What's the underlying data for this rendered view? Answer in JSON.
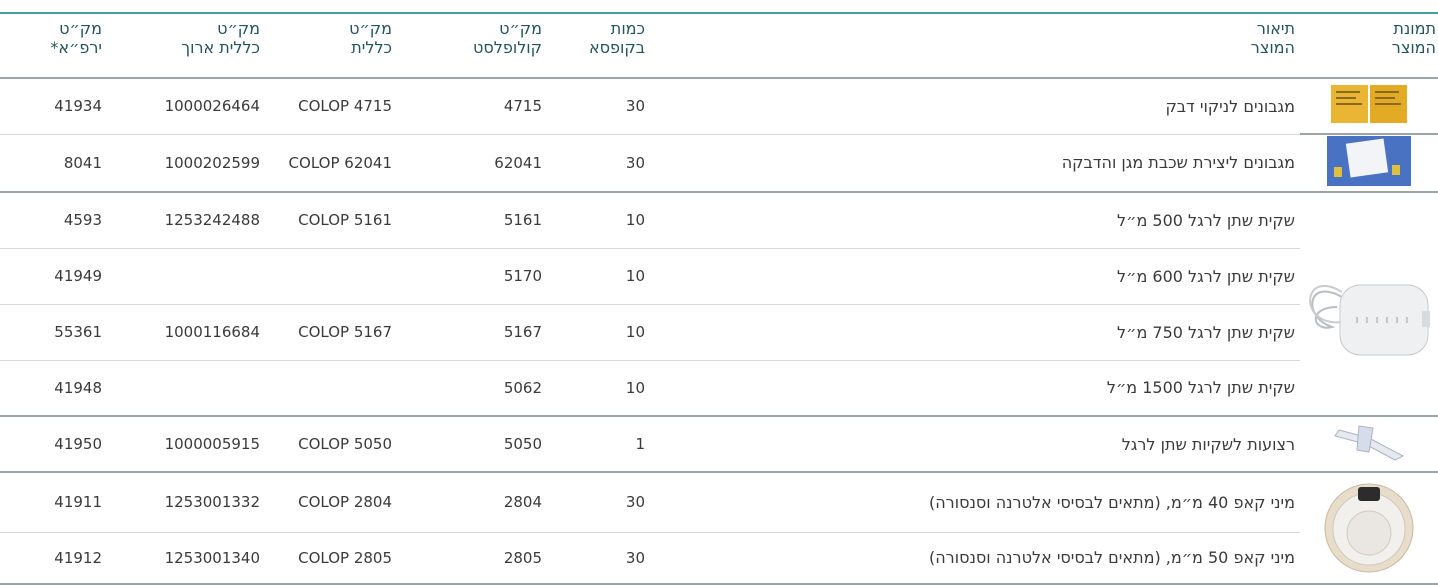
{
  "table": {
    "header": [
      [
        "תמונת",
        "המוצר"
      ],
      [
        "תיאור",
        "המוצר"
      ],
      [
        "כמות",
        "בקופסא"
      ],
      [
        "מק״ט",
        "קולופלסט"
      ],
      [
        "מק״ט",
        "כללית"
      ],
      [
        "מק״ט",
        "כללית ארוך"
      ],
      [
        "מק״ט",
        "ירפ״א*"
      ]
    ],
    "rows": [
      [
        "מגבונים לניקוי דבק",
        "30",
        "4715",
        "COLOP 4715",
        "1000026464",
        "41934"
      ],
      [
        "מגבונים ליצירת שכבת מגן והדבקה",
        "30",
        "62041",
        "COLOP 62041",
        "1000202599",
        "8041"
      ],
      [
        "שקית שתן לרגל 500 מ״ל",
        "10",
        "5161",
        "COLOP 5161",
        "1253242488",
        "4593"
      ],
      [
        "שקית שתן לרגל 600 מ״ל",
        "10",
        "5170",
        null,
        null,
        "41949"
      ],
      [
        "שקית שתן לרגל 750 מ״ל",
        "10",
        "5167",
        "COLOP 5167",
        "1000116684",
        "55361"
      ],
      [
        "שקית שתן לרגל 1500 מ״ל",
        "10",
        "5062",
        null,
        null,
        "41948"
      ],
      [
        "רצועות לשקיות שתן לרגל",
        "1",
        "5050",
        "COLOP 5050",
        "1000005915",
        "41950"
      ],
      [
        "מיני קאפ 40 מ״מ, (מתאים לבסיסי אלטרנה וסנסורה)",
        "30",
        "2804",
        "COLOP 2804",
        "1253001332",
        "41911"
      ],
      [
        "מיני קאפ 50 מ״מ, (מתאים לבסיסי אלטרנה וסנסורה)",
        "30",
        "2805",
        "COLOP 2805",
        "1253001340",
        "41912"
      ]
    ]
  }
}
